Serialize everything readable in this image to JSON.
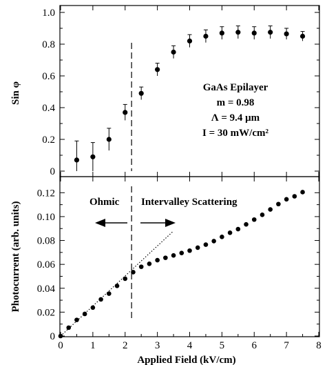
{
  "chart_data": [
    {
      "type": "scatter",
      "title": "",
      "xlabel": "",
      "ylabel": "Sin φ",
      "xlim": [
        0,
        8
      ],
      "ylim": [
        0,
        1.0
      ],
      "yticks": [
        "0",
        "0.2",
        "0.4",
        "0.6",
        "0.8",
        "1.0"
      ],
      "error_bars": true,
      "series": [
        {
          "x": [
            0.5,
            1.0,
            1.5,
            2.0,
            2.5,
            3.0,
            3.5,
            4.0,
            4.5,
            5.0,
            5.5,
            6.0,
            6.5,
            7.0,
            7.5
          ],
          "values": [
            0.07,
            0.09,
            0.2,
            0.37,
            0.49,
            0.64,
            0.75,
            0.82,
            0.85,
            0.87,
            0.875,
            0.87,
            0.875,
            0.865,
            0.85
          ],
          "errors": [
            0.12,
            0.09,
            0.07,
            0.05,
            0.04,
            0.04,
            0.04,
            0.04,
            0.04,
            0.04,
            0.04,
            0.04,
            0.04,
            0.035,
            0.03
          ]
        }
      ],
      "annotations": [
        "GaAs Epilayer",
        "m = 0.98",
        "Λ = 9.4 μm",
        "I = 30 mW/cm²"
      ]
    },
    {
      "type": "scatter",
      "title": "",
      "xlabel": "Applied Field (kV/cm)",
      "ylabel": "Photocurrent (arb. units)",
      "xlim": [
        0,
        8
      ],
      "ylim": [
        0,
        0.13
      ],
      "xticks": [
        "0",
        "1",
        "2",
        "3",
        "4",
        "5",
        "6",
        "7",
        "8"
      ],
      "yticks": [
        "0",
        "0.02",
        "0.04",
        "0.06",
        "0.08",
        "0.10",
        "0.12"
      ],
      "series": [
        {
          "x": [
            0,
            0.25,
            0.5,
            0.75,
            1.0,
            1.25,
            1.5,
            1.75,
            2.0,
            2.25,
            2.5,
            2.75,
            3.0,
            3.25,
            3.5,
            3.75,
            4.0,
            4.25,
            4.5,
            4.75,
            5.0,
            5.25,
            5.5,
            5.75,
            6.0,
            6.25,
            6.5,
            6.75,
            7.0,
            7.25,
            7.5
          ],
          "values": [
            0.0,
            0.007,
            0.0135,
            0.0185,
            0.0238,
            0.0307,
            0.0355,
            0.042,
            0.048,
            0.0535,
            0.058,
            0.0605,
            0.0635,
            0.0655,
            0.0675,
            0.0695,
            0.0715,
            0.074,
            0.0765,
            0.0795,
            0.083,
            0.0865,
            0.0895,
            0.0935,
            0.0975,
            0.1015,
            0.106,
            0.1105,
            0.1145,
            0.117,
            0.1205
          ]
        }
      ],
      "fit_line": {
        "x": [
          0,
          3.5
        ],
        "y": [
          0,
          0.088
        ]
      },
      "regions": [
        "Ohmic",
        "Intervalley Scattering"
      ]
    }
  ],
  "divider_x": 2.2
}
